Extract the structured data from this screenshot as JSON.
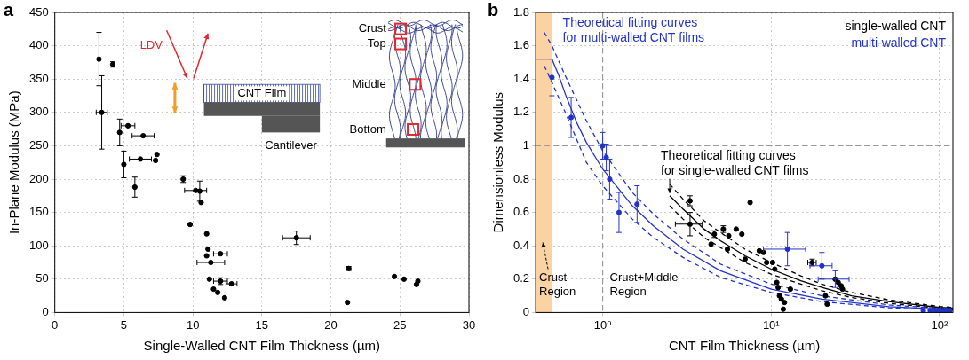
{
  "chart_data": [
    {
      "panel_label": "a",
      "type": "scatter",
      "x_label": "Single-Walled CNT Film Thickness (µm)",
      "y_label": "In-Plane Modulus (MPa)",
      "xlim": [
        0,
        30
      ],
      "xticks": [
        0,
        5,
        10,
        15,
        20,
        25,
        30
      ],
      "ylim": [
        0,
        450
      ],
      "yticks": [
        0,
        50,
        100,
        150,
        200,
        250,
        300,
        350,
        400,
        450
      ],
      "grid": true,
      "inset_labels": [
        "LDV",
        "CNT Film",
        "Cantilever",
        "Crust",
        "Top",
        "Middle",
        "Bottom"
      ],
      "series": [
        {
          "color": "#000000",
          "marker": "circle",
          "x": [
            3.2,
            4.2,
            3.4,
            4.7,
            5.3,
            6.4,
            5.0,
            5.8,
            6.2,
            7.4,
            7.3,
            9.3,
            10.2,
            10.5,
            10.6,
            9.8,
            11.0,
            11.1,
            11.0,
            11.3,
            12.0,
            11.2,
            12.0,
            11.8,
            12.3,
            11.5,
            12.8,
            17.5,
            21.3,
            21.2,
            24.6,
            25.3,
            26.2,
            26.3
          ],
          "values": [
            380,
            372,
            300,
            270,
            280,
            265,
            222,
            188,
            230,
            237,
            228,
            200,
            183,
            182,
            165,
            132,
            118,
            95,
            85,
            75,
            88,
            50,
            47,
            30,
            22,
            35,
            43,
            112,
            66,
            15,
            54,
            50,
            42,
            47
          ],
          "x_error": [
            null,
            null,
            0.4,
            null,
            0.5,
            0.8,
            null,
            null,
            0.8,
            null,
            null,
            null,
            0.8,
            null,
            null,
            null,
            null,
            null,
            null,
            1.0,
            0.5,
            null,
            0.5,
            null,
            null,
            null,
            0.4,
            1.0,
            null,
            null,
            null,
            null,
            null,
            null
          ],
          "y_error": [
            40,
            4,
            55,
            20,
            null,
            null,
            20,
            15,
            null,
            null,
            null,
            5,
            null,
            15,
            null,
            null,
            null,
            null,
            null,
            null,
            null,
            null,
            5,
            null,
            null,
            null,
            null,
            10,
            3,
            null,
            null,
            null,
            null,
            null
          ]
        }
      ]
    },
    {
      "panel_label": "b",
      "type": "scatter",
      "log": "x",
      "x_label": "CNT Film Thickness (µm)",
      "y_label": "Dimensionless Modulus",
      "xlim": [
        0.4,
        120
      ],
      "xticks": [
        {
          "value": 1,
          "label": "10⁰"
        },
        {
          "value": 10,
          "label": "10¹"
        },
        {
          "value": 100,
          "label": "10²"
        }
      ],
      "ylim": [
        0,
        1.8
      ],
      "yticks": [
        0,
        0.2,
        0.4,
        0.6,
        0.8,
        1,
        1.2,
        1.4,
        1.6,
        1.8
      ],
      "grid": true,
      "legend": "top-right",
      "shaded_region": {
        "x": [
          0.4,
          0.5
        ],
        "color": "#fbd3a2"
      },
      "reference_lines": {
        "x": [
          1
        ],
        "y": [
          1
        ]
      },
      "annotations": [
        {
          "lines": [
            "Theoretical fitting curves",
            "for multi-walled CNT films"
          ],
          "color": "#2233cc"
        },
        {
          "lines": [
            "Theoretical fitting curves",
            "for single-walled CNT films"
          ],
          "color": "#000000"
        },
        {
          "lines": [
            "Crust",
            "Region"
          ],
          "color": "#000000"
        },
        {
          "lines": [
            "Crust+Middle",
            "Region"
          ],
          "color": "#000000"
        }
      ],
      "series": [
        {
          "name": "single-walled CNT",
          "color": "#000000",
          "marker": "circle",
          "x": [
            3.3,
            3.3,
            4.4,
            4.6,
            5.2,
            5.5,
            5.6,
            6.2,
            6.7,
            7.0,
            7.5,
            8.5,
            9.0,
            9.4,
            10.2,
            10.5,
            10.8,
            11.0,
            11.2,
            11.5,
            11.8,
            12.0,
            13.0,
            17.5,
            21.0,
            21.5,
            24.0,
            25.0,
            26.0,
            26.5
          ],
          "values": [
            0.67,
            0.53,
            0.41,
            0.47,
            0.5,
            0.38,
            0.46,
            0.5,
            0.47,
            0.32,
            0.66,
            0.37,
            0.36,
            0.3,
            0.3,
            0.26,
            0.18,
            0.15,
            0.1,
            0.08,
            0.02,
            0.06,
            0.14,
            0.3,
            0.1,
            0.05,
            0.2,
            0.18,
            0.16,
            0.14
          ],
          "x_error": [
            null,
            0.6,
            null,
            null,
            null,
            null,
            null,
            null,
            null,
            null,
            null,
            null,
            null,
            null,
            null,
            null,
            null,
            null,
            null,
            null,
            null,
            null,
            null,
            1.0,
            null,
            null,
            null,
            null,
            null,
            null
          ],
          "y_error": [
            0.03,
            0.07,
            null,
            0.02,
            0.02,
            null,
            null,
            null,
            null,
            null,
            null,
            null,
            null,
            null,
            null,
            null,
            null,
            null,
            null,
            null,
            null,
            null,
            null,
            0.02,
            null,
            null,
            null,
            null,
            null,
            null
          ]
        },
        {
          "name": "multi-walled CNT",
          "color": "#2233cc",
          "marker": "circle",
          "x": [
            0.5,
            0.65,
            1.0,
            1.05,
            1.1,
            1.25,
            1.6,
            12.5,
            20,
            24,
            80,
            88,
            95,
            100,
            105,
            110,
            115
          ],
          "values": [
            1.41,
            1.17,
            1.0,
            0.93,
            0.8,
            0.6,
            0.65,
            0.38,
            0.28,
            0.2,
            0.01,
            0.01,
            0.012,
            0.01,
            0.01,
            0.01,
            0.012
          ],
          "x_error": [
            null,
            null,
            null,
            null,
            null,
            null,
            null,
            3.5,
            3,
            5,
            null,
            null,
            null,
            null,
            null,
            null,
            null
          ],
          "y_error": [
            0.11,
            0.12,
            0.08,
            0.08,
            0.12,
            0.12,
            0.11,
            0.1,
            0.08,
            0.05,
            null,
            null,
            null,
            null,
            null,
            null,
            null
          ]
        },
        {
          "type": "line",
          "color": "#2233cc",
          "line_style": "solid",
          "x": [
            0.4,
            0.5,
            0.55,
            0.6,
            0.7,
            0.8,
            1,
            1.5,
            2,
            3,
            5,
            10,
            20,
            50,
            100,
            120
          ],
          "values": [
            1.52,
            1.52,
            1.42,
            1.31,
            1.14,
            1.02,
            0.86,
            0.64,
            0.52,
            0.38,
            0.25,
            0.14,
            0.08,
            0.035,
            0.02,
            0.018
          ]
        },
        {
          "type": "line",
          "color": "#2233cc",
          "line_style": "dashed",
          "x": [
            0.45,
            0.5,
            0.6,
            0.8,
            1,
            1.5,
            2,
            3,
            5,
            10,
            20,
            50,
            100,
            120
          ],
          "values": [
            1.68,
            1.6,
            1.42,
            1.15,
            0.97,
            0.72,
            0.59,
            0.44,
            0.29,
            0.17,
            0.1,
            0.045,
            0.025,
            0.022
          ]
        },
        {
          "type": "line",
          "color": "#2233cc",
          "line_style": "dashed",
          "x": [
            0.45,
            0.5,
            0.6,
            0.8,
            1,
            1.5,
            2,
            3,
            5,
            10,
            20,
            50,
            100,
            120
          ],
          "values": [
            1.48,
            1.38,
            1.2,
            0.9,
            0.76,
            0.56,
            0.45,
            0.33,
            0.21,
            0.12,
            0.065,
            0.028,
            0.015,
            0.013
          ]
        },
        {
          "type": "line",
          "color": "#000000",
          "line_style": "solid",
          "x": [
            2.5,
            3,
            4,
            5,
            7,
            10,
            15,
            20,
            30,
            50,
            100,
            120
          ],
          "values": [
            0.7,
            0.62,
            0.5,
            0.43,
            0.34,
            0.26,
            0.19,
            0.15,
            0.1,
            0.065,
            0.03,
            0.026
          ]
        },
        {
          "type": "line",
          "color": "#000000",
          "line_style": "dashed",
          "x": [
            2.5,
            3,
            4,
            5,
            7,
            10,
            15,
            20,
            30,
            50,
            100,
            120
          ],
          "values": [
            0.77,
            0.68,
            0.55,
            0.48,
            0.38,
            0.3,
            0.22,
            0.17,
            0.12,
            0.075,
            0.036,
            0.03
          ]
        },
        {
          "type": "line",
          "color": "#000000",
          "line_style": "dashed",
          "x": [
            2.5,
            3,
            4,
            5,
            7,
            10,
            15,
            20,
            30,
            50,
            100,
            120
          ],
          "values": [
            0.64,
            0.56,
            0.45,
            0.39,
            0.3,
            0.23,
            0.17,
            0.13,
            0.09,
            0.055,
            0.025,
            0.022
          ]
        }
      ]
    }
  ]
}
